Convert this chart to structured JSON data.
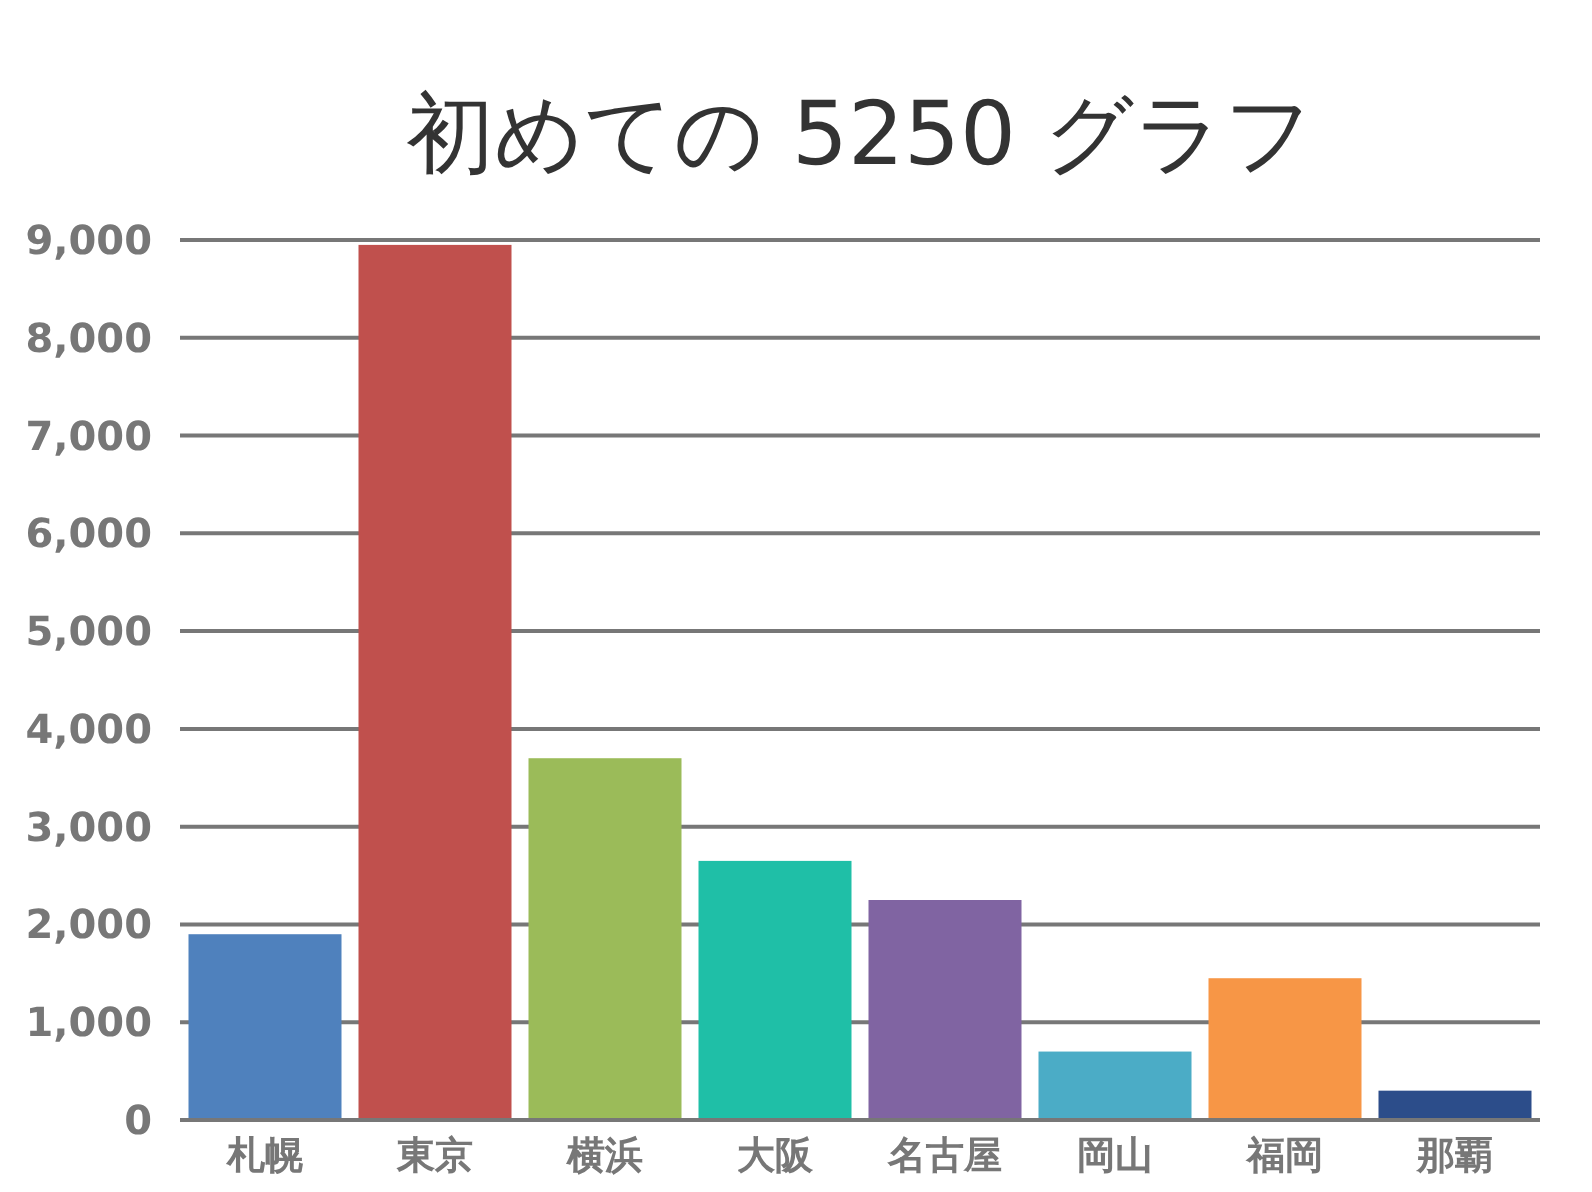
{
  "chart_data": {
    "type": "bar",
    "title": "初めての 5250 グラフ",
    "categories": [
      "札幌",
      "東京",
      "横浜",
      "大阪",
      "名古屋",
      "岡山",
      "福岡",
      "那覇"
    ],
    "values": [
      1900,
      8950,
      3700,
      2650,
      2250,
      700,
      1450,
      300
    ],
    "colors": [
      "#4f81bd",
      "#c0504d",
      "#9bbb59",
      "#1fbfa7",
      "#8064a2",
      "#4bacc6",
      "#f79646",
      "#2c4d8a"
    ],
    "ylim": [
      0,
      9000
    ],
    "yticks": [
      {
        "value": 0,
        "label": "0"
      },
      {
        "value": 1000,
        "label": "1,000"
      },
      {
        "value": 2000,
        "label": "2,000"
      },
      {
        "value": 3000,
        "label": "3,000"
      },
      {
        "value": 4000,
        "label": "4,000"
      },
      {
        "value": 5000,
        "label": "5,000"
      },
      {
        "value": 6000,
        "label": "6,000"
      },
      {
        "value": 7000,
        "label": "7,000"
      },
      {
        "value": 8000,
        "label": "8,000"
      },
      {
        "value": 9000,
        "label": "9,000"
      }
    ],
    "grid": "y"
  }
}
